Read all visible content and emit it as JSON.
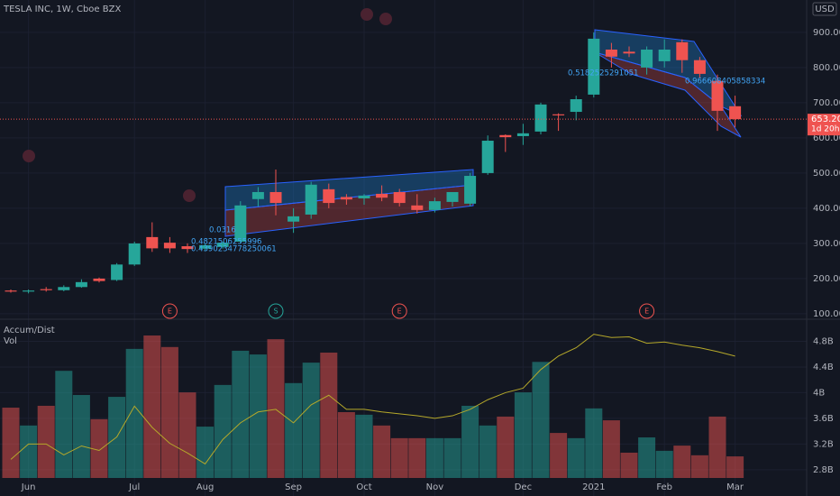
{
  "header": {
    "title": "TESLA INC, 1W, Cboe BZX",
    "currency": "USD"
  },
  "chart_data": [
    {
      "type": "candlestick",
      "categories": [
        null,
        "Jun",
        null,
        null,
        null,
        null,
        null,
        "Jul",
        null,
        null,
        null,
        "Aug",
        null,
        null,
        null,
        null,
        "Sep",
        null,
        null,
        null,
        "Oct",
        null,
        null,
        null,
        "Nov",
        null,
        null,
        null,
        null,
        "Dec",
        null,
        null,
        null,
        "2021",
        null,
        null,
        null,
        "Feb",
        null,
        null,
        null,
        "Mar"
      ],
      "open": [
        166,
        163,
        170,
        167,
        176,
        200,
        196,
        240,
        318,
        302,
        292,
        285,
        290,
        305,
        426,
        446,
        362,
        382,
        454,
        432,
        428,
        441,
        446,
        408,
        395,
        418,
        413,
        500,
        608,
        605,
        618,
        667,
        674,
        723,
        851,
        845,
        800,
        818,
        872,
        821,
        762,
        690
      ],
      "high": [
        169,
        169,
        176,
        181,
        198,
        203,
        244,
        305,
        360,
        318,
        300,
        300,
        305,
        420,
        460,
        510,
        400,
        475,
        470,
        440,
        440,
        465,
        455,
        440,
        430,
        440,
        500,
        607,
        610,
        640,
        700,
        670,
        720,
        900,
        870,
        860,
        860,
        880,
        880,
        830,
        780,
        720
      ],
      "low": [
        160,
        158,
        163,
        164,
        174,
        189,
        193,
        236,
        276,
        273,
        273,
        280,
        285,
        300,
        405,
        380,
        330,
        370,
        400,
        410,
        410,
        420,
        405,
        385,
        388,
        405,
        405,
        495,
        560,
        580,
        610,
        620,
        650,
        715,
        800,
        830,
        780,
        800,
        785,
        770,
        620,
        630
      ],
      "close": [
        163,
        166,
        167,
        176,
        190,
        193,
        240,
        300,
        286,
        286,
        284,
        295,
        302,
        408,
        446,
        415,
        377,
        467,
        415,
        425,
        436,
        430,
        415,
        395,
        420,
        446,
        492,
        592,
        602,
        613,
        695,
        664,
        710,
        882,
        831,
        840,
        851,
        851,
        821,
        782,
        677,
        653.2
      ],
      "up_color": "#26a69a",
      "down_color": "#ef5350",
      "ylim": [
        87,
        992
      ],
      "yticks": [
        {
          "value": 100,
          "label": "100.00"
        },
        {
          "value": 200,
          "label": "200.00"
        },
        {
          "value": 300,
          "label": "300.00"
        },
        {
          "value": 400,
          "label": "400.00"
        },
        {
          "value": 500,
          "label": "500.00"
        },
        {
          "value": 600,
          "label": "600.00"
        },
        {
          "value": 700,
          "label": "700.00"
        },
        {
          "value": 800,
          "label": "800.00"
        },
        {
          "value": 900,
          "label": "900.00"
        }
      ],
      "grid": true,
      "last_price": {
        "value": 653.2,
        "label": "653.20"
      },
      "countdown": "1d 20h",
      "events": [
        null,
        null,
        null,
        null,
        null,
        null,
        null,
        null,
        null,
        "E",
        null,
        null,
        null,
        null,
        null,
        "S",
        null,
        null,
        null,
        null,
        null,
        null,
        "E",
        null,
        null,
        null,
        null,
        null,
        null,
        null,
        null,
        null,
        null,
        null,
        null,
        null,
        "E",
        null,
        null,
        null,
        null,
        null
      ],
      "annotations": [
        "0.0316",
        "0.4821506255996",
        "0.4390234778250061",
        "0.5182525291051",
        "0.966608405858334"
      ]
    },
    {
      "type": "volume_ad",
      "series": [
        {
          "name": "Accum/Dist",
          "color": "#b5a82a",
          "values": [
            2.96,
            3.2,
            3.2,
            3.03,
            3.17,
            3.1,
            3.31,
            3.79,
            3.46,
            3.21,
            3.06,
            2.89,
            3.27,
            3.53,
            3.7,
            3.74,
            3.53,
            3.81,
            3.96,
            3.74,
            3.74,
            3.7,
            3.67,
            3.64,
            3.6,
            3.64,
            3.74,
            3.89,
            4.0,
            4.07,
            4.36,
            4.57,
            4.7,
            4.91,
            4.86,
            4.87,
            4.77,
            4.79,
            4.74,
            4.7,
            4.64,
            4.57
          ]
        },
        {
          "name": "Vol",
          "axis": "y2",
          "up_color": "rgba(38,166,154,0.5)",
          "down_color": "rgba(239,83,80,0.5)",
          "values": [
            189,
            141,
            194,
            288,
            223,
            158,
            218,
            347,
            383,
            352,
            230,
            138,
            250,
            342,
            332,
            373,
            255,
            310,
            337,
            177,
            170,
            141,
            107,
            107,
            107,
            107,
            194,
            141,
            165,
            230,
            312,
            121,
            107,
            187,
            155,
            68,
            109,
            73,
            87,
            61,
            165,
            58
          ]
        }
      ],
      "ylim": [
        2.39,
        5.13
      ],
      "yticks": [
        {
          "value": 2.8,
          "label": "2.8B"
        },
        {
          "value": 3.2,
          "label": "3.2B"
        },
        {
          "value": 3.6,
          "label": "3.6B"
        },
        {
          "value": 4,
          "label": "4B"
        },
        {
          "value": 4.4,
          "label": "4.4B"
        },
        {
          "value": 4.8,
          "label": "4.8B"
        }
      ],
      "y2lim": [
        0,
        400
      ]
    }
  ]
}
